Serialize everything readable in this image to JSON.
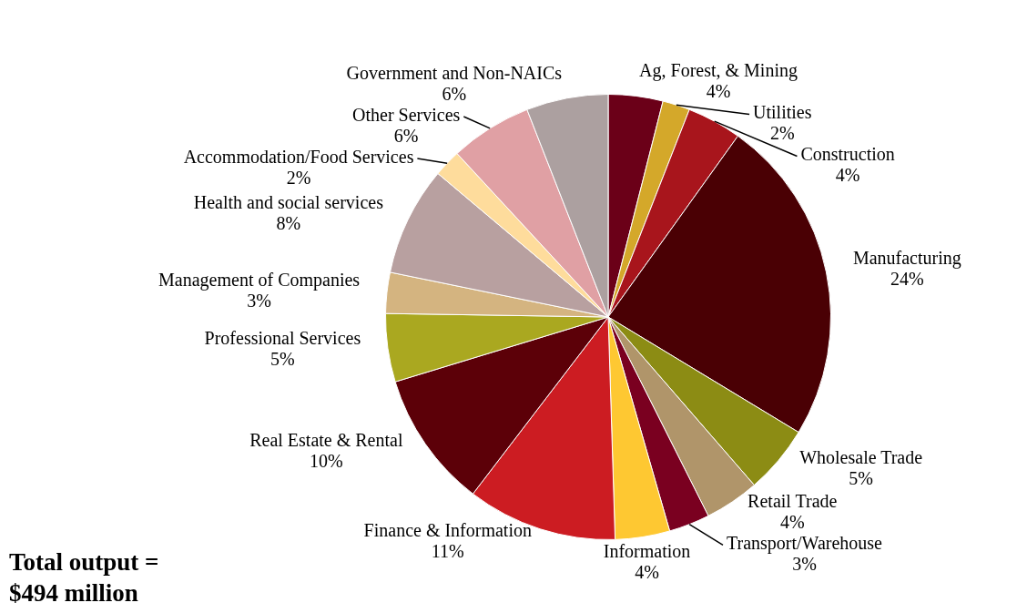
{
  "chart_data": {
    "type": "pie",
    "categories": [
      "Ag, Forest, & Mining",
      "Utilities",
      "Construction",
      "Manufacturing",
      "Wholesale Trade",
      "Retail Trade",
      "Transport/Warehouse",
      "Information",
      "Finance & Information",
      "Real Estate & Rental",
      "Professional Services",
      "Management of Companies",
      "Health and social services",
      "Accommodation/Food Services",
      "Other Services",
      "Government and Non-NAICs"
    ],
    "values": [
      4,
      2,
      4,
      24,
      5,
      4,
      3,
      4,
      11,
      10,
      5,
      3,
      8,
      2,
      6,
      6
    ],
    "value_labels": [
      "4%",
      "2%",
      "4%",
      "24%",
      "5%",
      "4%",
      "3%",
      "4%",
      "11%",
      "10%",
      "5%",
      "3%",
      "8%",
      "2%",
      "6%",
      "6%"
    ],
    "colors": [
      "#6b0018",
      "#d4a82a",
      "#a8151c",
      "#4a0004",
      "#8c8c14",
      "#b0956a",
      "#7a0020",
      "#fec832",
      "#cc1c22",
      "#5c0008",
      "#aaa820",
      "#d4b480",
      "#b8a0a0",
      "#fedc9c",
      "#e0a0a4",
      "#aca0a0"
    ],
    "annotations": [
      "Total output = $494 million"
    ]
  }
}
